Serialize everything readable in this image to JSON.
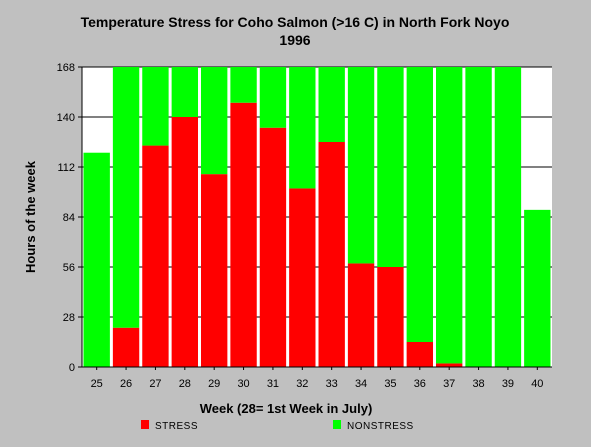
{
  "chart_data": {
    "type": "bar",
    "stacked": true,
    "title": "Temperature Stress for Coho Salmon (>16 C) in North Fork Noyo",
    "subtitle": "1996",
    "xlabel": "Week (28= 1st Week in July)",
    "ylabel": "Hours of the week",
    "categories": [
      "25",
      "26",
      "27",
      "28",
      "29",
      "30",
      "31",
      "32",
      "33",
      "34",
      "35",
      "36",
      "37",
      "38",
      "39",
      "40"
    ],
    "series": [
      {
        "name": "STRESS",
        "color": "#ff0000",
        "values": [
          0,
          22,
          124,
          140,
          108,
          148,
          134,
          100,
          126,
          58,
          56,
          14,
          2,
          0,
          0,
          0
        ]
      },
      {
        "name": "NONSTRESS",
        "color": "#00ff00",
        "values": [
          120,
          146,
          44,
          28,
          60,
          20,
          34,
          68,
          42,
          110,
          112,
          154,
          166,
          168,
          168,
          88
        ]
      }
    ],
    "ylim": [
      0,
      168
    ],
    "yticks": [
      0,
      28,
      56,
      84,
      112,
      140,
      168
    ],
    "grid": "horizontal",
    "legend_position": "bottom",
    "colors": {
      "background": "#c0c0c0",
      "plot_background": "#ffffff"
    }
  }
}
